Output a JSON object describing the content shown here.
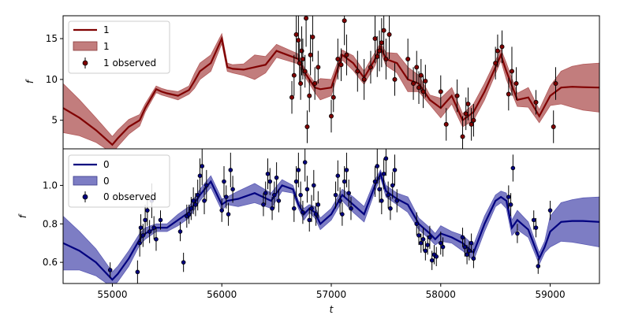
{
  "chart_data": [
    {
      "type": "line",
      "panel": "top",
      "xlabel": "",
      "ylabel": "f",
      "xlim": [
        54550,
        59450
      ],
      "ylim": [
        1.5,
        17.8
      ],
      "yticks": [
        5,
        10,
        15
      ],
      "legend": {
        "placement": "top-left",
        "entries": [
          "1",
          "1",
          "1 observed"
        ]
      },
      "colors": {
        "line": "#800000",
        "band": "#b35c5c",
        "points": "#800000"
      },
      "series": [
        {
          "name": "1",
          "kind": "model",
          "x": [
            54550,
            54700,
            54850,
            55000,
            55050,
            55150,
            55250,
            55300,
            55400,
            55450,
            55500,
            55600,
            55700,
            55750,
            55800,
            55900,
            56000,
            56050,
            56100,
            56200,
            56300,
            56400,
            56500,
            56600,
            56700,
            56750,
            56800,
            56850,
            56900,
            57000,
            57050,
            57100,
            57200,
            57300,
            57400,
            57450,
            57500,
            57600,
            57700,
            57800,
            57900,
            58000,
            58100,
            58200,
            58300,
            58400,
            58500,
            58550,
            58600,
            58700,
            58800,
            58900,
            59000,
            59100,
            59200,
            59300,
            59450
          ],
          "y": [
            6.5,
            5.3,
            3.8,
            2.0,
            2.8,
            4.2,
            5.0,
            6.5,
            8.8,
            8.5,
            8.3,
            8.0,
            8.7,
            9.8,
            11.0,
            12.0,
            15.0,
            11.5,
            11.3,
            11.2,
            11.5,
            11.8,
            13.5,
            13.0,
            12.5,
            11.0,
            10.0,
            9.0,
            8.8,
            9.0,
            11.0,
            13.0,
            12.0,
            10.2,
            12.5,
            14.0,
            12.5,
            12.0,
            10.0,
            9.5,
            7.5,
            6.5,
            8.0,
            5.0,
            6.0,
            8.5,
            11.5,
            13.0,
            11.0,
            7.5,
            7.8,
            5.5,
            8.0,
            9.0,
            9.1,
            9.05,
            9.0
          ],
          "err": [
            3.0,
            2.2,
            1.5,
            1.0,
            1.0,
            0.9,
            0.7,
            0.5,
            0.4,
            0.4,
            0.4,
            0.5,
            0.5,
            0.9,
            1.0,
            1.0,
            0.6,
            0.5,
            0.5,
            0.7,
            1.5,
            1.0,
            0.8,
            0.7,
            0.6,
            0.5,
            0.5,
            0.6,
            1.3,
            1.0,
            0.8,
            0.6,
            0.9,
            0.8,
            0.8,
            0.5,
            0.8,
            1.2,
            1.5,
            1.0,
            0.6,
            1.2,
            1.0,
            0.8,
            1.0,
            1.0,
            0.8,
            0.7,
            1.0,
            0.8,
            1.2,
            0.8,
            1.2,
            2.0,
            2.5,
            2.8,
            3.0
          ]
        },
        {
          "name": "1 observed",
          "kind": "observed",
          "x": [
            56640,
            56660,
            56680,
            56700,
            56710,
            56720,
            56730,
            56740,
            56760,
            56770,
            56780,
            56800,
            56810,
            56830,
            56850,
            56880,
            57000,
            57020,
            57060,
            57090,
            57120,
            57140,
            57240,
            57300,
            57360,
            57400,
            57420,
            57440,
            57460,
            57480,
            57500,
            57530,
            57580,
            57700,
            57750,
            57780,
            57800,
            57820,
            57840,
            57860,
            58000,
            58050,
            58150,
            58200,
            58230,
            58250,
            58280,
            58300,
            58500,
            58520,
            58560,
            58620,
            58650,
            58690,
            58870,
            59030,
            59050
          ],
          "y": [
            7.8,
            10.5,
            15.5,
            14.8,
            12.0,
            9.5,
            13.5,
            12.5,
            11.0,
            17.5,
            4.2,
            8.0,
            13.0,
            15.2,
            9.5,
            11.5,
            5.5,
            7.8,
            12.5,
            11.8,
            17.2,
            13.0,
            11.0,
            10.0,
            11.5,
            15.0,
            12.8,
            13.5,
            14.5,
            16.0,
            12.5,
            15.5,
            10.0,
            12.5,
            9.5,
            11.5,
            9.0,
            10.5,
            8.5,
            9.8,
            8.5,
            4.5,
            8.0,
            3.0,
            5.8,
            7.0,
            4.5,
            5.0,
            12.0,
            13.5,
            14.0,
            8.2,
            11.0,
            9.5,
            7.2,
            4.2,
            9.5
          ],
          "yerr": [
            2.0,
            2.5,
            3.0,
            3.0,
            2.5,
            2.0,
            3.0,
            2.5,
            2.0,
            3.5,
            2.0,
            2.0,
            2.5,
            3.0,
            2.0,
            2.0,
            2.0,
            1.8,
            2.5,
            2.0,
            3.0,
            2.5,
            2.5,
            2.5,
            2.0,
            3.0,
            2.5,
            2.5,
            3.0,
            3.0,
            2.5,
            3.0,
            2.0,
            2.5,
            2.0,
            2.0,
            2.0,
            2.0,
            2.0,
            2.0,
            2.0,
            2.0,
            2.0,
            2.5,
            2.0,
            2.0,
            2.0,
            2.0,
            2.0,
            2.0,
            2.0,
            2.0,
            3.0,
            2.0,
            1.5,
            2.0,
            2.0
          ]
        }
      ]
    },
    {
      "type": "line",
      "panel": "bottom",
      "xlabel": "t",
      "ylabel": "f",
      "xlim": [
        54550,
        59450
      ],
      "ylim": [
        0.49,
        1.19
      ],
      "xticks": [
        55000,
        56000,
        57000,
        58000,
        59000
      ],
      "yticks": [
        0.6,
        0.8,
        1.0
      ],
      "legend": {
        "placement": "top-left",
        "entries": [
          "0",
          "0",
          "0 observed"
        ]
      },
      "colors": {
        "line": "#00007f",
        "band": "#5c5cb5",
        "points": "#00007f"
      },
      "series": [
        {
          "name": "0",
          "kind": "model",
          "x": [
            54550,
            54700,
            54850,
            55000,
            55050,
            55150,
            55250,
            55300,
            55400,
            55500,
            55600,
            55700,
            55800,
            55900,
            56000,
            56050,
            56150,
            56300,
            56450,
            56550,
            56650,
            56700,
            56750,
            56800,
            56850,
            56900,
            57000,
            57100,
            57200,
            57300,
            57400,
            57450,
            57500,
            57600,
            57700,
            57800,
            57900,
            57950,
            58000,
            58100,
            58200,
            58300,
            58400,
            58500,
            58550,
            58600,
            58650,
            58700,
            58800,
            58900,
            58950,
            59000,
            59100,
            59200,
            59300,
            59450
          ],
          "y": [
            0.7,
            0.66,
            0.6,
            0.51,
            0.54,
            0.62,
            0.72,
            0.75,
            0.78,
            0.78,
            0.82,
            0.86,
            0.95,
            1.02,
            0.9,
            0.92,
            0.93,
            0.96,
            0.92,
            1.0,
            0.98,
            0.9,
            0.85,
            0.88,
            0.86,
            0.8,
            0.85,
            0.95,
            0.9,
            0.85,
            1.0,
            1.06,
            0.97,
            0.93,
            0.9,
            0.8,
            0.75,
            0.72,
            0.75,
            0.73,
            0.7,
            0.65,
            0.8,
            0.92,
            0.94,
            0.92,
            0.78,
            0.82,
            0.77,
            0.62,
            0.68,
            0.76,
            0.81,
            0.815,
            0.815,
            0.81
          ],
          "err": [
            0.14,
            0.1,
            0.07,
            0.04,
            0.04,
            0.04,
            0.03,
            0.03,
            0.02,
            0.02,
            0.03,
            0.03,
            0.03,
            0.03,
            0.03,
            0.02,
            0.04,
            0.05,
            0.04,
            0.03,
            0.02,
            0.02,
            0.03,
            0.02,
            0.03,
            0.03,
            0.03,
            0.03,
            0.04,
            0.04,
            0.03,
            0.02,
            0.03,
            0.03,
            0.04,
            0.03,
            0.03,
            0.03,
            0.04,
            0.03,
            0.04,
            0.04,
            0.04,
            0.03,
            0.03,
            0.04,
            0.04,
            0.05,
            0.04,
            0.03,
            0.03,
            0.08,
            0.1,
            0.11,
            0.12,
            0.13
          ],
          "observed_x": [
            54980,
            55230,
            55250,
            55260,
            55280,
            55300,
            55320,
            55340,
            55360,
            55380,
            55400,
            55440,
            55620,
            55650,
            55680,
            55700,
            55720,
            55740,
            55760,
            55780,
            55800,
            55820,
            55840,
            55860,
            56000,
            56020,
            56040,
            56060,
            56080,
            56100,
            56380,
            56400,
            56420,
            56440,
            56460,
            56480,
            56500,
            56520,
            56660,
            56680,
            56700,
            56720,
            56740,
            56760,
            56780,
            56800,
            56820,
            56840,
            56860,
            56880,
            57040,
            57060,
            57080,
            57100,
            57120,
            57140,
            57160,
            57180,
            57400,
            57420,
            57440,
            57460,
            57480,
            57500,
            57520,
            57540,
            57560,
            57580,
            57600,
            57780,
            57800,
            57820,
            57840,
            57860,
            57880,
            57900,
            57920,
            57940,
            57960,
            58000,
            58020,
            58200,
            58220,
            58240,
            58260,
            58280,
            58300,
            58620,
            58640,
            58660,
            58700,
            58850,
            58870,
            58890,
            59000
          ],
          "observed_y": [
            0.56,
            0.55,
            0.7,
            0.78,
            0.74,
            0.82,
            0.87,
            0.76,
            0.92,
            0.78,
            0.72,
            0.82,
            0.76,
            0.6,
            0.84,
            0.85,
            0.88,
            0.92,
            0.9,
            0.95,
            1.05,
            1.1,
            0.92,
            1.0,
            0.87,
            1.02,
            0.94,
            0.85,
            1.08,
            0.98,
            0.9,
            0.96,
            1.06,
            1.02,
            0.88,
            0.95,
            1.04,
            0.92,
            0.88,
            1.02,
            1.08,
            0.95,
            0.86,
            1.12,
            0.98,
            0.82,
            0.88,
            1.0,
            0.85,
            0.9,
            0.95,
            1.05,
            0.92,
            0.85,
            1.02,
            1.08,
            0.96,
            0.88,
            1.02,
            1.1,
            0.98,
            0.92,
            1.06,
            1.14,
            0.95,
            0.88,
            1.0,
            1.08,
            0.92,
            0.8,
            0.74,
            0.7,
            0.72,
            0.66,
            0.69,
            0.73,
            0.61,
            0.64,
            0.63,
            0.7,
            0.68,
            0.73,
            0.68,
            0.64,
            0.66,
            0.7,
            0.62,
            0.94,
            0.9,
            1.09,
            0.75,
            0.82,
            0.78,
            0.58,
            0.87
          ],
          "observed_yerr": [
            0.04,
            0.06,
            0.07,
            0.07,
            0.06,
            0.08,
            0.08,
            0.06,
            0.09,
            0.06,
            0.06,
            0.05,
            0.05,
            0.05,
            0.06,
            0.05,
            0.06,
            0.07,
            0.06,
            0.08,
            0.09,
            0.1,
            0.07,
            0.08,
            0.06,
            0.08,
            0.06,
            0.06,
            0.09,
            0.07,
            0.06,
            0.06,
            0.08,
            0.07,
            0.06,
            0.07,
            0.08,
            0.06,
            0.07,
            0.08,
            0.09,
            0.07,
            0.06,
            0.1,
            0.07,
            0.06,
            0.07,
            0.08,
            0.06,
            0.07,
            0.07,
            0.08,
            0.07,
            0.06,
            0.08,
            0.09,
            0.07,
            0.06,
            0.08,
            0.09,
            0.07,
            0.07,
            0.08,
            0.09,
            0.07,
            0.06,
            0.07,
            0.08,
            0.06,
            0.06,
            0.05,
            0.05,
            0.06,
            0.05,
            0.05,
            0.06,
            0.05,
            0.05,
            0.05,
            0.06,
            0.05,
            0.05,
            0.05,
            0.05,
            0.05,
            0.05,
            0.05,
            0.06,
            0.06,
            0.07,
            0.05,
            0.05,
            0.05,
            0.04,
            0.05
          ]
        }
      ]
    }
  ]
}
